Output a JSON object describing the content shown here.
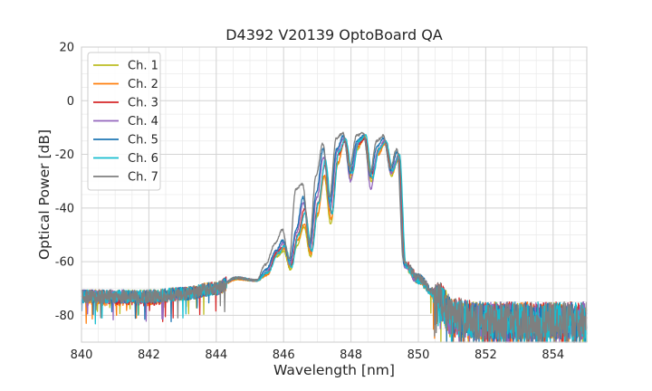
{
  "chart_data": {
    "type": "line",
    "title": "D4392 V20139 OptoBoard QA",
    "xlabel": "Wavelength [nm]",
    "ylabel": "Optical Power [dB]",
    "xlim": [
      840,
      855
    ],
    "ylim": [
      -90,
      20
    ],
    "xticks": [
      840,
      842,
      844,
      846,
      848,
      850,
      852,
      854
    ],
    "yticks": [
      -80,
      -60,
      -40,
      -20,
      0,
      20
    ],
    "grid": true,
    "minor_grid": true,
    "legend_position": "top-left",
    "series": [
      {
        "name": "Ch. 1",
        "color": "#bcbd22",
        "peak_shift": 0.0,
        "points": [
          [
            840,
            -73
          ],
          [
            842,
            -73
          ],
          [
            843,
            -72
          ],
          [
            844,
            -70
          ],
          [
            844.6,
            -66.5
          ],
          [
            845.2,
            -67
          ],
          [
            845.5,
            -65
          ],
          [
            845.8,
            -58
          ],
          [
            846.0,
            -56
          ],
          [
            846.2,
            -63
          ],
          [
            846.4,
            -54
          ],
          [
            846.6,
            -47
          ],
          [
            846.8,
            -58
          ],
          [
            847.0,
            -43
          ],
          [
            847.2,
            -28
          ],
          [
            847.4,
            -46
          ],
          [
            847.6,
            -24
          ],
          [
            847.8,
            -15
          ],
          [
            848.0,
            -29
          ],
          [
            848.2,
            -18
          ],
          [
            848.4,
            -13
          ],
          [
            848.6,
            -30
          ],
          [
            848.8,
            -20
          ],
          [
            849.0,
            -16
          ],
          [
            849.2,
            -28
          ],
          [
            849.4,
            -22
          ],
          [
            849.6,
            -62
          ],
          [
            850,
            -67
          ],
          [
            850.5,
            -72
          ],
          [
            851,
            -80
          ],
          [
            852,
            -82
          ],
          [
            853,
            -82
          ],
          [
            854,
            -82
          ],
          [
            855,
            -82
          ]
        ]
      },
      {
        "name": "Ch. 2",
        "color": "#ff7f0e",
        "peak_shift": 0.05,
        "points": [
          [
            840,
            -74
          ],
          [
            842,
            -74
          ],
          [
            843,
            -72
          ],
          [
            844,
            -70
          ],
          [
            844.6,
            -66.5
          ],
          [
            845.2,
            -67
          ],
          [
            845.5,
            -65
          ],
          [
            845.8,
            -57
          ],
          [
            846.0,
            -55
          ],
          [
            846.2,
            -62
          ],
          [
            846.4,
            -52
          ],
          [
            846.6,
            -46
          ],
          [
            846.8,
            -57
          ],
          [
            847.0,
            -42
          ],
          [
            847.2,
            -28
          ],
          [
            847.4,
            -44
          ],
          [
            847.6,
            -23
          ],
          [
            847.8,
            -15
          ],
          [
            848.0,
            -28
          ],
          [
            848.2,
            -17
          ],
          [
            848.4,
            -14
          ],
          [
            848.6,
            -29
          ],
          [
            848.8,
            -20
          ],
          [
            849.0,
            -16
          ],
          [
            849.2,
            -27
          ],
          [
            849.4,
            -22
          ],
          [
            849.6,
            -62
          ],
          [
            850,
            -67
          ],
          [
            850.5,
            -73
          ],
          [
            851,
            -81
          ],
          [
            852,
            -82
          ],
          [
            853,
            -82
          ],
          [
            854,
            -82
          ],
          [
            855,
            -82
          ]
        ]
      },
      {
        "name": "Ch. 3",
        "color": "#d62728",
        "peak_shift": 0.1,
        "points": [
          [
            840,
            -73
          ],
          [
            842,
            -74
          ],
          [
            843,
            -72
          ],
          [
            844,
            -70
          ],
          [
            844.6,
            -66
          ],
          [
            845.2,
            -67
          ],
          [
            845.5,
            -64
          ],
          [
            845.8,
            -56
          ],
          [
            846.0,
            -54
          ],
          [
            846.2,
            -61
          ],
          [
            846.4,
            -50
          ],
          [
            846.6,
            -40
          ],
          [
            846.8,
            -56
          ],
          [
            847.0,
            -38
          ],
          [
            847.2,
            -24
          ],
          [
            847.4,
            -42
          ],
          [
            847.6,
            -20
          ],
          [
            847.8,
            -15
          ],
          [
            848.0,
            -26
          ],
          [
            848.2,
            -16
          ],
          [
            848.4,
            -14
          ],
          [
            848.6,
            -27
          ],
          [
            848.8,
            -18
          ],
          [
            849.0,
            -15
          ],
          [
            849.2,
            -26
          ],
          [
            849.4,
            -20
          ],
          [
            849.6,
            -61
          ],
          [
            850,
            -66
          ],
          [
            850.5,
            -72
          ],
          [
            851,
            -80
          ],
          [
            852,
            -82
          ],
          [
            853,
            -82
          ],
          [
            854,
            -82
          ],
          [
            855,
            -82
          ]
        ]
      },
      {
        "name": "Ch. 4",
        "color": "#9467bd",
        "peak_shift": -0.05,
        "points": [
          [
            840,
            -73
          ],
          [
            842,
            -73
          ],
          [
            843,
            -72
          ],
          [
            844,
            -70
          ],
          [
            844.6,
            -66
          ],
          [
            845.2,
            -67
          ],
          [
            845.5,
            -64
          ],
          [
            845.8,
            -56
          ],
          [
            846.0,
            -53
          ],
          [
            846.2,
            -61
          ],
          [
            846.4,
            -49
          ],
          [
            846.6,
            -38
          ],
          [
            846.8,
            -55
          ],
          [
            847.0,
            -36
          ],
          [
            847.2,
            -21
          ],
          [
            847.4,
            -40
          ],
          [
            847.6,
            -19
          ],
          [
            847.8,
            -14
          ],
          [
            848.0,
            -30
          ],
          [
            848.2,
            -16
          ],
          [
            848.4,
            -13
          ],
          [
            848.6,
            -33
          ],
          [
            848.8,
            -19
          ],
          [
            849.0,
            -15
          ],
          [
            849.2,
            -27
          ],
          [
            849.4,
            -21
          ],
          [
            849.6,
            -62
          ],
          [
            850,
            -67
          ],
          [
            850.5,
            -72
          ],
          [
            851,
            -81
          ],
          [
            852,
            -82
          ],
          [
            853,
            -82
          ],
          [
            854,
            -82
          ],
          [
            855,
            -82
          ]
        ]
      },
      {
        "name": "Ch. 5",
        "color": "#1f77b4",
        "peak_shift": -0.1,
        "points": [
          [
            840,
            -73
          ],
          [
            842,
            -73
          ],
          [
            843,
            -72
          ],
          [
            844,
            -70
          ],
          [
            844.6,
            -66
          ],
          [
            845.2,
            -67
          ],
          [
            845.5,
            -63
          ],
          [
            845.8,
            -56
          ],
          [
            846.0,
            -52
          ],
          [
            846.2,
            -60
          ],
          [
            846.4,
            -48
          ],
          [
            846.6,
            -36
          ],
          [
            846.8,
            -54
          ],
          [
            847.0,
            -34
          ],
          [
            847.2,
            -18
          ],
          [
            847.4,
            -38
          ],
          [
            847.6,
            -18
          ],
          [
            847.8,
            -13
          ],
          [
            848.0,
            -27
          ],
          [
            848.2,
            -15
          ],
          [
            848.4,
            -13
          ],
          [
            848.6,
            -28
          ],
          [
            848.8,
            -17
          ],
          [
            849.0,
            -14
          ],
          [
            849.2,
            -26
          ],
          [
            849.4,
            -19
          ],
          [
            849.6,
            -61
          ],
          [
            850,
            -66
          ],
          [
            850.5,
            -72
          ],
          [
            851,
            -80
          ],
          [
            852,
            -82
          ],
          [
            853,
            -82
          ],
          [
            854,
            -82
          ],
          [
            855,
            -82
          ]
        ]
      },
      {
        "name": "Ch. 6",
        "color": "#17becf",
        "peak_shift": 0.15,
        "points": [
          [
            840,
            -73
          ],
          [
            842,
            -73
          ],
          [
            843,
            -72
          ],
          [
            844,
            -70
          ],
          [
            844.6,
            -66
          ],
          [
            845.2,
            -67
          ],
          [
            845.5,
            -64
          ],
          [
            845.8,
            -57
          ],
          [
            846.0,
            -54
          ],
          [
            846.2,
            -62
          ],
          [
            846.4,
            -50
          ],
          [
            846.6,
            -42
          ],
          [
            846.8,
            -56
          ],
          [
            847.0,
            -38
          ],
          [
            847.2,
            -22
          ],
          [
            847.4,
            -42
          ],
          [
            847.6,
            -19
          ],
          [
            847.8,
            -14
          ],
          [
            848.0,
            -27
          ],
          [
            848.2,
            -15
          ],
          [
            848.4,
            -13
          ],
          [
            848.6,
            -29
          ],
          [
            848.8,
            -18
          ],
          [
            849.0,
            -15
          ],
          [
            849.2,
            -26
          ],
          [
            849.4,
            -20
          ],
          [
            849.6,
            -62
          ],
          [
            850,
            -67
          ],
          [
            850.5,
            -73
          ],
          [
            851,
            -81
          ],
          [
            852,
            -82
          ],
          [
            853,
            -82
          ],
          [
            854,
            -82
          ],
          [
            855,
            -82
          ]
        ]
      },
      {
        "name": "Ch. 7",
        "color": "#7f7f7f",
        "peak_shift": -0.15,
        "points": [
          [
            840,
            -73
          ],
          [
            842,
            -73
          ],
          [
            843,
            -72
          ],
          [
            844,
            -70
          ],
          [
            844.6,
            -66
          ],
          [
            845.2,
            -67
          ],
          [
            845.5,
            -61
          ],
          [
            845.8,
            -53
          ],
          [
            846.0,
            -48
          ],
          [
            846.2,
            -59
          ],
          [
            846.4,
            -33
          ],
          [
            846.6,
            -31
          ],
          [
            846.8,
            -53
          ],
          [
            847.0,
            -28
          ],
          [
            847.2,
            -16
          ],
          [
            847.4,
            -36
          ],
          [
            847.6,
            -14
          ],
          [
            847.8,
            -12
          ],
          [
            848.0,
            -25
          ],
          [
            848.2,
            -13
          ],
          [
            848.4,
            -12
          ],
          [
            848.6,
            -27
          ],
          [
            848.8,
            -15
          ],
          [
            849.0,
            -13
          ],
          [
            849.2,
            -25
          ],
          [
            849.4,
            -18
          ],
          [
            849.6,
            -60
          ],
          [
            850,
            -66
          ],
          [
            850.5,
            -72
          ],
          [
            851,
            -80
          ],
          [
            852,
            -82
          ],
          [
            853,
            -82
          ],
          [
            854,
            -82
          ],
          [
            855,
            -82
          ]
        ]
      }
    ]
  }
}
